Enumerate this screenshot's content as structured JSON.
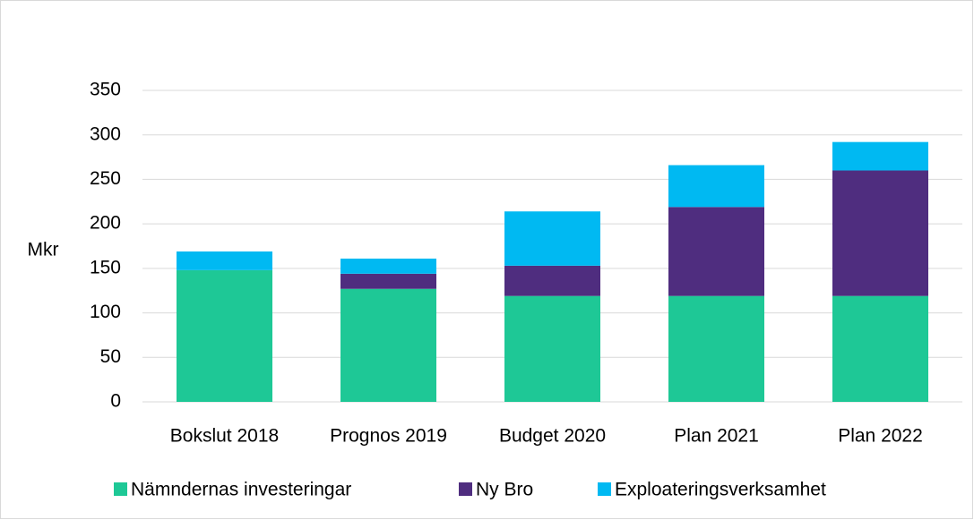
{
  "chart_data": {
    "type": "stacked_bar",
    "y_label": "Mkr",
    "categories": [
      "Bokslut 2018",
      "Prognos 2019",
      "Budget 2020",
      "Plan 2021",
      "Plan 2022"
    ],
    "series": [
      {
        "name": "Nämndernas investeringar",
        "color": "#1ec896",
        "values": [
          148,
          127,
          119,
          119,
          119
        ]
      },
      {
        "name": "Ny Bro",
        "color": "#4f2d7f",
        "values": [
          0,
          17,
          34,
          100,
          141
        ]
      },
      {
        "name": "Exploateringsverksamhet",
        "color": "#00b9f2",
        "values": [
          21,
          17,
          61,
          47,
          32
        ]
      }
    ],
    "ylim": [
      0,
      350
    ],
    "yticks": [
      0,
      50,
      100,
      150,
      200,
      250,
      300,
      350
    ],
    "grid": true,
    "legend": "bottom"
  }
}
